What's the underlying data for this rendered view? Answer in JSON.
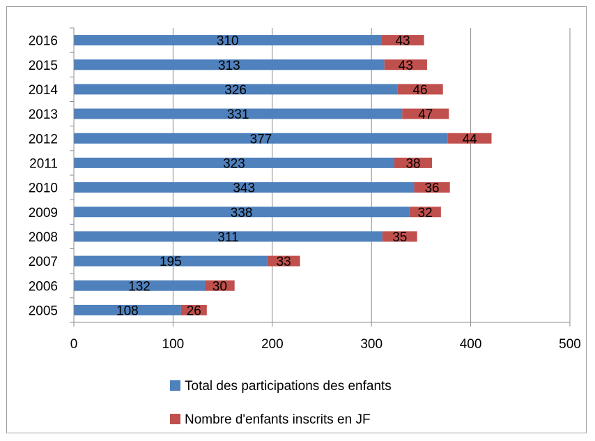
{
  "chart_data": {
    "type": "bar",
    "orientation": "horizontal",
    "stacked": true,
    "categories": [
      "2005",
      "2006",
      "2007",
      "2008",
      "2009",
      "2010",
      "2011",
      "2012",
      "2013",
      "2014",
      "2015",
      "2016"
    ],
    "series": [
      {
        "name": "Total des participations des enfants",
        "color": "#4f81bd",
        "values": [
          108,
          132,
          195,
          311,
          338,
          343,
          323,
          377,
          331,
          326,
          313,
          310
        ]
      },
      {
        "name": "Nombre d'enfants inscrits en JF",
        "color": "#c0504d",
        "values": [
          26,
          30,
          33,
          35,
          32,
          36,
          38,
          44,
          47,
          46,
          43,
          43
        ]
      }
    ],
    "xlim": [
      0,
      500
    ],
    "xticks": [
      "0",
      "100",
      "200",
      "300",
      "400",
      "500"
    ],
    "grid": "vertical",
    "legend": "bottom"
  }
}
